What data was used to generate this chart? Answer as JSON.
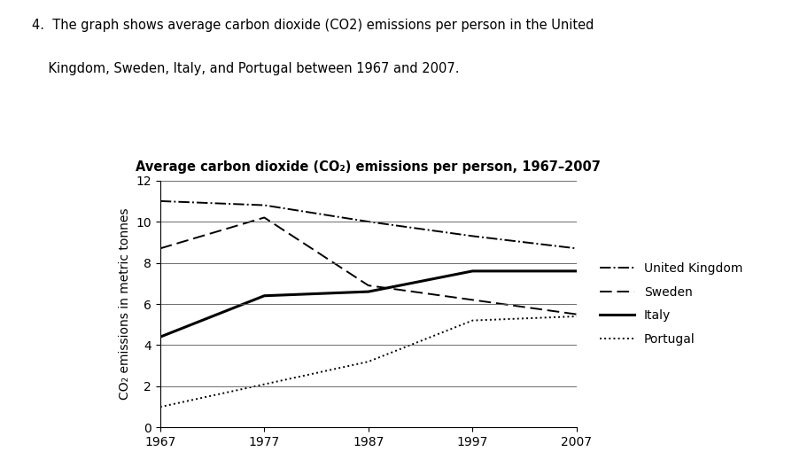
{
  "title": "Average carbon dioxide (CO₂) emissions per person, 1967–2007",
  "ylabel": "CO₂ emissions in metric tonnes",
  "years": [
    1967,
    1977,
    1987,
    1997,
    2007
  ],
  "united_kingdom": [
    11.0,
    10.8,
    10.0,
    9.3,
    8.7
  ],
  "sweden": [
    8.7,
    10.2,
    6.9,
    6.2,
    5.5
  ],
  "italy": [
    4.4,
    6.4,
    6.6,
    7.6,
    7.6
  ],
  "portugal": [
    1.0,
    2.1,
    3.2,
    5.2,
    5.4
  ],
  "ylim": [
    0,
    12
  ],
  "yticks": [
    0,
    2,
    4,
    6,
    8,
    10,
    12
  ],
  "legend_labels": [
    "United Kingdom",
    "Sweden",
    "Italy",
    "Portugal"
  ],
  "background_color": "#ffffff",
  "line_color": "#000000",
  "question_line1": "4.  The graph shows average carbon dioxide (CO2) emissions per person in the United",
  "question_line2": "    Kingdom, Sweden, Italy, and Portugal between 1967 and 2007."
}
